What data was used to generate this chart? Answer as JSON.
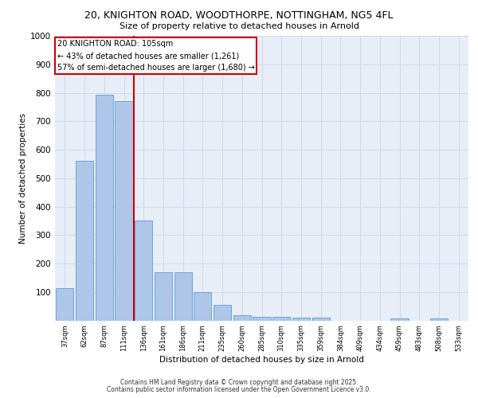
{
  "title_line1": "20, KNIGHTON ROAD, WOODTHORPE, NOTTINGHAM, NG5 4FL",
  "title_line2": "Size of property relative to detached houses in Arnold",
  "xlabel": "Distribution of detached houses by size in Arnold",
  "ylabel": "Number of detached properties",
  "categories": [
    "37sqm",
    "62sqm",
    "87sqm",
    "111sqm",
    "136sqm",
    "161sqm",
    "186sqm",
    "211sqm",
    "235sqm",
    "260sqm",
    "285sqm",
    "310sqm",
    "335sqm",
    "359sqm",
    "384sqm",
    "409sqm",
    "434sqm",
    "459sqm",
    "483sqm",
    "508sqm",
    "533sqm"
  ],
  "values": [
    113,
    562,
    793,
    770,
    350,
    168,
    168,
    99,
    55,
    18,
    13,
    13,
    10,
    10,
    0,
    0,
    0,
    7,
    0,
    7,
    0
  ],
  "bar_color": "#aec6e8",
  "bar_edge_color": "#5a9fd4",
  "vline_x": 3.5,
  "vline_color": "#cc0000",
  "annotation_text": "20 KNIGHTON ROAD: 105sqm\n← 43% of detached houses are smaller (1,261)\n57% of semi-detached houses are larger (1,680) →",
  "annotation_box_color": "#cc0000",
  "ylim": [
    0,
    1000
  ],
  "yticks": [
    0,
    100,
    200,
    300,
    400,
    500,
    600,
    700,
    800,
    900,
    1000
  ],
  "grid_color": "#d0d8e8",
  "bg_color": "#e8eef8",
  "footer_line1": "Contains HM Land Registry data © Crown copyright and database right 2025.",
  "footer_line2": "Contains public sector information licensed under the Open Government Licence v3.0."
}
